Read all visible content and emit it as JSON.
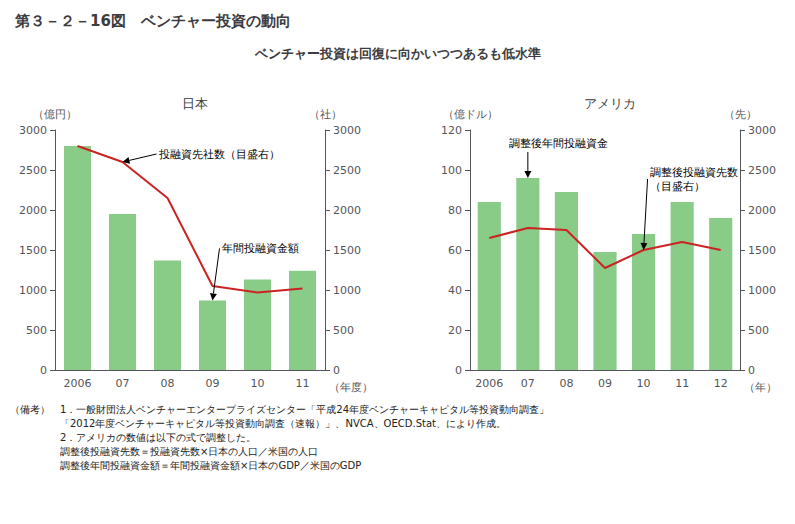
{
  "title": "第３－２－16図　ベンチャー投資の動向",
  "subtitle": "ベンチャー投資は回復に向かいつつあるも低水準",
  "footnotes": [
    "（備考）　1．一般財団法人ベンチャーエンタープライズセンター「平成24年度ベンチャーキャピタル等投資動向調査」",
    "　　　　　「2012年度ベンチャーキャピタル等投資動向調査（速報）」、NVCA、OECD.Stat、により作成。",
    "　　　　　2．アメリカの数値は以下の式で調整した。",
    "　　　　　調整後投融資先数＝投融資先数×日本の人口／米国の人口",
    "　　　　　調整後年間投融資金額＝年間投融資金額×日本のGDP／米国のGDP"
  ],
  "chart_data": [
    {
      "type": "bar",
      "title": "日本",
      "categories": [
        "2006",
        "07",
        "08",
        "09",
        "10",
        "11"
      ],
      "xlabel": "（年度）",
      "ylabel": "（億円）",
      "y2label": "（社）",
      "ylim": [
        0,
        3000
      ],
      "yticks": [
        0,
        500,
        1000,
        1500,
        2000,
        2500,
        3000
      ],
      "y2lim": [
        0,
        3000
      ],
      "y2ticks": [
        0,
        500,
        1000,
        1500,
        2000,
        2500,
        3000
      ],
      "grid": false,
      "series": [
        {
          "type": "bar",
          "color": "#88cc88",
          "values": [
            2800,
            1950,
            1370,
            870,
            1130,
            1240
          ]
        },
        {
          "type": "line",
          "color": "#cc2222",
          "axis": "y2",
          "values": [
            2800,
            2600,
            2150,
            1050,
            970,
            1020
          ]
        }
      ],
      "annotations": [
        {
          "text": "投融資先社数（目盛右）",
          "x": "07",
          "y": 2600,
          "axis": "y2"
        },
        {
          "text": "年間投融資金額",
          "x": "09",
          "y": 870
        }
      ]
    },
    {
      "type": "bar",
      "title": "アメリカ",
      "categories": [
        "2006",
        "07",
        "08",
        "09",
        "10",
        "11",
        "12"
      ],
      "xlabel": "（年）",
      "ylabel": "（億ドル）",
      "y2label": "（先）",
      "ylim": [
        0,
        120
      ],
      "yticks": [
        0,
        20,
        40,
        60,
        80,
        100,
        120
      ],
      "y2lim": [
        0,
        3000
      ],
      "y2ticks": [
        0,
        500,
        1000,
        1500,
        2000,
        2500,
        3000
      ],
      "grid": false,
      "series": [
        {
          "type": "bar",
          "color": "#88cc88",
          "values": [
            84,
            96,
            89,
            59,
            68,
            84,
            76
          ]
        },
        {
          "type": "line",
          "color": "#cc2222",
          "axis": "y2",
          "values": [
            1650,
            1775,
            1750,
            1275,
            1500,
            1600,
            1500
          ]
        }
      ],
      "annotations": [
        {
          "text": "調整後年間投融資金",
          "x": "07",
          "y": 96
        },
        {
          "text": "調整後投融資先数\n（目盛右）",
          "x": "10",
          "y": 1500,
          "axis": "y2"
        }
      ]
    }
  ]
}
